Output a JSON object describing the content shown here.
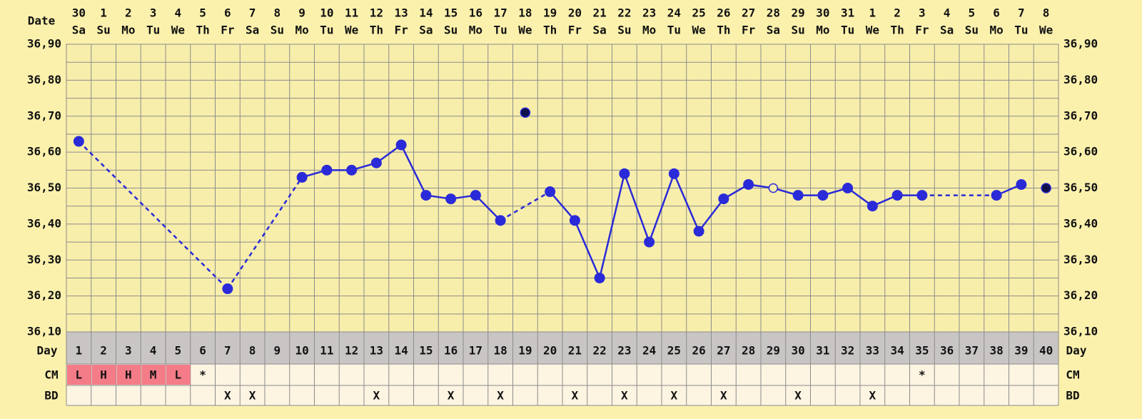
{
  "chart_data": {
    "type": "line",
    "date_label": "Date",
    "day_label": "Day",
    "cm_label": "CM",
    "bd_label": "BD",
    "dates": [
      "30",
      "1",
      "2",
      "3",
      "4",
      "5",
      "6",
      "7",
      "8",
      "9",
      "10",
      "11",
      "12",
      "13",
      "14",
      "15",
      "16",
      "17",
      "18",
      "19",
      "20",
      "21",
      "22",
      "23",
      "24",
      "25",
      "26",
      "27",
      "28",
      "29",
      "30",
      "31",
      "1",
      "2",
      "3",
      "4",
      "5",
      "6",
      "7",
      "8"
    ],
    "weekdays": [
      "Sa",
      "Su",
      "Mo",
      "Tu",
      "We",
      "Th",
      "Fr",
      "Sa",
      "Su",
      "Mo",
      "Tu",
      "We",
      "Th",
      "Fr",
      "Sa",
      "Su",
      "Mo",
      "Tu",
      "We",
      "Th",
      "Fr",
      "Sa",
      "Su",
      "Mo",
      "Tu",
      "We",
      "Th",
      "Fr",
      "Sa",
      "Su",
      "Mo",
      "Tu",
      "We",
      "Th",
      "Fr",
      "Sa",
      "Su",
      "Mo",
      "Tu",
      "We"
    ],
    "categories": [
      1,
      2,
      3,
      4,
      5,
      6,
      7,
      8,
      9,
      10,
      11,
      12,
      13,
      14,
      15,
      16,
      17,
      18,
      19,
      20,
      21,
      22,
      23,
      24,
      25,
      26,
      27,
      28,
      29,
      30,
      31,
      32,
      33,
      34,
      35,
      36,
      37,
      38,
      39,
      40
    ],
    "values": [
      36.63,
      null,
      null,
      null,
      null,
      null,
      36.22,
      null,
      null,
      36.53,
      36.55,
      36.55,
      36.57,
      36.62,
      36.48,
      36.47,
      36.48,
      36.41,
      null,
      36.49,
      36.41,
      36.25,
      36.54,
      36.35,
      36.54,
      36.38,
      36.47,
      36.51,
      36.5,
      36.48,
      36.48,
      36.5,
      36.45,
      36.48,
      36.48,
      null,
      null,
      36.48,
      36.51,
      null
    ],
    "excluded_values": [
      null,
      null,
      null,
      null,
      null,
      null,
      null,
      null,
      null,
      null,
      null,
      null,
      null,
      null,
      null,
      null,
      null,
      null,
      36.71,
      null,
      null,
      null,
      null,
      null,
      null,
      null,
      null,
      null,
      null,
      null,
      null,
      null,
      null,
      null,
      null,
      null,
      null,
      null,
      null,
      36.5
    ],
    "open_days": [
      29
    ],
    "cm": [
      "L",
      "H",
      "H",
      "M",
      "L",
      "*",
      null,
      null,
      null,
      null,
      null,
      null,
      null,
      null,
      null,
      null,
      null,
      null,
      null,
      null,
      null,
      null,
      null,
      null,
      null,
      null,
      null,
      null,
      null,
      null,
      null,
      null,
      null,
      null,
      "*",
      null,
      null,
      null,
      null,
      null
    ],
    "cm_colors": [
      "#f47c88",
      "#f47c88",
      "#f47c88",
      "#f47c88",
      "#f47c88",
      null,
      null,
      null,
      null,
      null,
      null,
      null,
      null,
      null,
      null,
      null,
      null,
      null,
      null,
      null,
      null,
      null,
      null,
      null,
      null,
      null,
      null,
      null,
      null,
      null,
      null,
      null,
      null,
      null,
      null,
      null,
      null,
      null,
      null,
      null
    ],
    "bd": [
      null,
      null,
      null,
      null,
      null,
      null,
      "X",
      "X",
      null,
      null,
      null,
      null,
      "X",
      null,
      null,
      "X",
      null,
      "X",
      null,
      null,
      "X",
      null,
      "X",
      null,
      "X",
      null,
      "X",
      null,
      null,
      "X",
      null,
      null,
      "X",
      null,
      null,
      null,
      null,
      null,
      null,
      null
    ],
    "color": "#2a2ad8",
    "excluded_color": "#10104a",
    "ylim": [
      36.1,
      36.9
    ],
    "yticks": [
      {
        "value": 36.1,
        "label": "36,10"
      },
      {
        "value": 36.2,
        "label": "36,20"
      },
      {
        "value": 36.3,
        "label": "36,30"
      },
      {
        "value": 36.4,
        "label": "36,40"
      },
      {
        "value": 36.5,
        "label": "36,50"
      },
      {
        "value": 36.6,
        "label": "36,60"
      },
      {
        "value": 36.7,
        "label": "36,70"
      },
      {
        "value": 36.8,
        "label": "36,80"
      },
      {
        "value": 36.9,
        "label": "36,90"
      }
    ],
    "grid": true
  }
}
